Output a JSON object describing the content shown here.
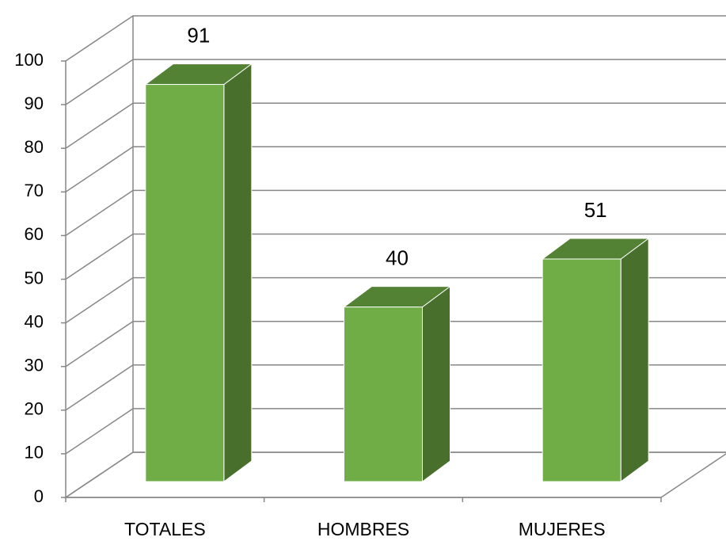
{
  "chart_data": {
    "type": "bar3d",
    "categories": [
      "TOTALES",
      "HOMBRES",
      "MUJERES"
    ],
    "values": [
      91,
      40,
      51
    ],
    "color": "#70ad47",
    "ylim": [
      0,
      100
    ],
    "yticks": [
      0,
      10,
      20,
      30,
      40,
      50,
      60,
      70,
      80,
      90,
      100
    ],
    "grid": true
  }
}
